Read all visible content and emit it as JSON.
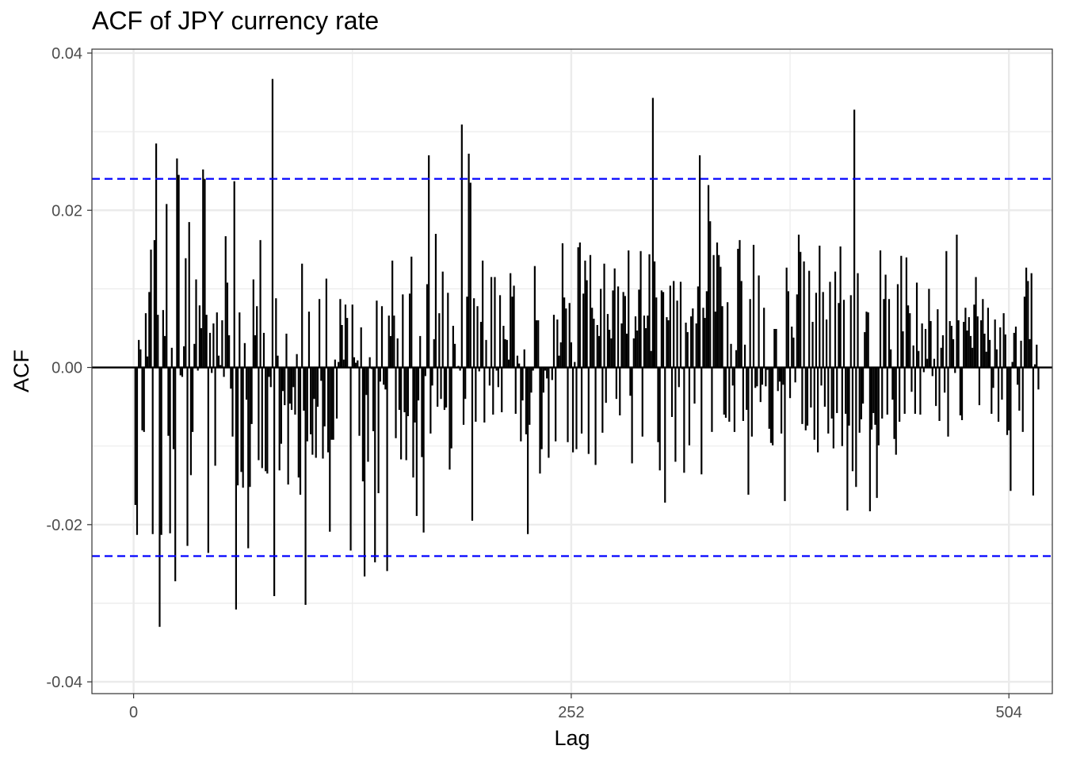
{
  "chart_data": {
    "type": "bar",
    "title": "ACF of JPY currency rate",
    "xlabel": "Lag",
    "ylabel": "ACF",
    "xlim": [
      -24,
      529
    ],
    "ylim": [
      -0.0415,
      0.0405
    ],
    "x_ticks": [
      0,
      252,
      504
    ],
    "x_minor_ticks": [
      126,
      378
    ],
    "y_ticks": [
      -0.04,
      -0.02,
      0.0,
      0.02,
      0.04
    ],
    "y_tick_labels": [
      "-0.04",
      "-0.02",
      "0.00",
      "0.02",
      "0.04"
    ],
    "y_minor_ticks": [
      -0.03,
      -0.01,
      0.01,
      0.03
    ],
    "grid": true,
    "confidence_bounds": [
      0.024,
      -0.024
    ],
    "colors": {
      "bars": "#000000",
      "confidence_lines": "#0000FF",
      "grid": "#EBEBEB",
      "zero_line": "#000000"
    },
    "lags_start": 1,
    "values": [
      -0.0175,
      -0.0213,
      0.0035,
      0.0023,
      -0.008,
      -0.0082,
      0.0069,
      0.0014,
      0.0096,
      0.015,
      -0.0212,
      0.0162,
      0.0285,
      0.0067,
      -0.033,
      -0.0213,
      0.0073,
      0.004,
      0.0208,
      -0.0087,
      -0.0211,
      0.0025,
      -0.0104,
      -0.0272,
      0.0266,
      0.0245,
      -0.001,
      -0.0012,
      0.0027,
      0.0139,
      -0.0227,
      0.0185,
      -0.0137,
      -0.0082,
      0.003,
      0.0112,
      -0.0004,
      0.0079,
      0.005,
      0.0252,
      0.024,
      0.0067,
      -0.0236,
      0.0044,
      -0.0007,
      0.0056,
      -0.0125,
      0.007,
      0.0015,
      0.0003,
      0.006,
      -0.0012,
      0.0167,
      0.0108,
      0.0041,
      -0.0027,
      -0.0088,
      0.0237,
      -0.0308,
      -0.015,
      0.007,
      -0.0133,
      -0.0153,
      0.0031,
      -0.0041,
      -0.023,
      -0.0152,
      -0.0072,
      0.0112,
      0.0041,
      0.0078,
      -0.0118,
      0.0162,
      -0.0128,
      0.0044,
      -0.0132,
      -0.0135,
      -0.0012,
      -0.0025,
      0.0367,
      -0.0291,
      0.0088,
      0.0015,
      -0.0131,
      -0.0097,
      -0.003,
      -0.0048,
      0.0043,
      -0.0149,
      -0.0046,
      -0.0054,
      -0.0025,
      -0.006,
      0.0017,
      -0.014,
      -0.0162,
      0.0132,
      -0.0055,
      -0.0302,
      -0.0094,
      0.0071,
      -0.0085,
      -0.0111,
      -0.004,
      -0.0115,
      -0.005,
      0.0087,
      -0.0017,
      -0.0116,
      -0.0075,
      0.0113,
      -0.0108,
      -0.0209,
      -0.0092,
      -0.0092,
      0.001,
      -0.0065,
      0.0007,
      0.0087,
      0.0054,
      0.001,
      0.008,
      0.0063,
      -0.0001,
      -0.0233,
      0.008,
      0.0013,
      0.0006,
      0.0009,
      -0.0087,
      0.0051,
      -0.0145,
      -0.0266,
      -0.0035,
      -0.012,
      0.0013,
      -0.0002,
      -0.0081,
      -0.0248,
      0.0085,
      -0.016,
      -0.0018,
      0.0078,
      -0.0022,
      -0.0028,
      -0.0259,
      0.0066,
      0.004,
      0.0136,
      0.0066,
      -0.009,
      0.0037,
      -0.0054,
      -0.0117,
      0.0093,
      -0.0057,
      -0.0118,
      -0.0062,
      0.0094,
      0.0141,
      -0.014,
      -0.007,
      -0.0189,
      -0.0042,
      0.004,
      -0.0114,
      -0.021,
      -0.0011,
      0.0106,
      0.027,
      -0.0084,
      -0.0023,
      0.0036,
      0.017,
      -0.005,
      0.0069,
      -0.004,
      0.0122,
      -0.0054,
      -0.0051,
      0.0095,
      -0.013,
      -0.0103,
      0.0053,
      0.003,
      0.0001,
      0.0002,
      -0.0004,
      0.0309,
      -0.0073,
      -0.004,
      0.009,
      0.0272,
      0.0235,
      -0.0195,
      0.0088,
      -0.0069,
      0.0078,
      -0.0005,
      0.0058,
      0.0136,
      -0.007,
      0.0035,
      0.0001,
      -0.0023,
      0.0115,
      -0.006,
      0.0115,
      -0.0004,
      -0.0025,
      0.0092,
      -0.0057,
      0.0053,
      0.0036,
      0.0035,
      0.001,
      0.012,
      0.009,
      0.0104,
      -0.0059,
      0.0015,
      0.0005,
      -0.0094,
      -0.0042,
      0.0023,
      -0.0085,
      -0.0212,
      -0.0073,
      -0.0032,
      -0.0004,
      0.0129,
      0.006,
      0.006,
      -0.0135,
      -0.0104,
      -0.0032,
      -0.0004,
      -0.0014,
      -0.0115,
      -0.0001,
      -0.0016,
      0.0067,
      -0.0094,
      0.0061,
      0.0015,
      0.0032,
      0.0158,
      0.0089,
      0.0075,
      -0.0095,
      0.0082,
      0.0032,
      -0.0108,
      0.0007,
      -0.0104,
      0.0153,
      0.0159,
      -0.0084,
      0.0094,
      0.0136,
      0.0111,
      -0.011,
      0.0143,
      0.0076,
      0.0062,
      -0.0124,
      0.0054,
      0.004,
      0.01,
      -0.0083,
      0.0132,
      -0.0045,
      0.0068,
      0.0048,
      0.0037,
      0.0098,
      0.0126,
      -0.004,
      0.0103,
      -0.0061,
      0.0056,
      0.0096,
      0.0091,
      0.0043,
      0.0149,
      -0.0036,
      -0.0122,
      0.0037,
      0.0065,
      0.0047,
      0.0099,
      0.0148,
      -0.0088,
      0.0066,
      0.005,
      0.0066,
      0.0144,
      0.0021,
      0.0343,
      0.0135,
      0.0089,
      -0.0095,
      -0.0131,
      0.0098,
      0.0096,
      -0.0172,
      0.0064,
      0.006,
      0.0104,
      -0.0063,
      0.011,
      -0.012,
      0.0085,
      -0.0025,
      0.0109,
      -0.0002,
      -0.0134,
      0.0057,
      0.0045,
      -0.0099,
      0.0065,
      0.0075,
      -0.0046,
      0.0056,
      0.0103,
      0.027,
      -0.0136,
      0.0076,
      0.0063,
      0.0097,
      0.0232,
      0.0186,
      -0.0082,
      0.0143,
      0.0071,
      0.0159,
      0.0143,
      0.0128,
      0.0078,
      -0.006,
      -0.0064,
      0.0083,
      -0.0069,
      0.003,
      -0.0023,
      -0.0082,
      0.0022,
      0.0151,
      0.0162,
      0.011,
      -0.0068,
      0.0029,
      -0.0054,
      -0.0162,
      0.0087,
      -0.0088,
      0.0156,
      -0.0026,
      -0.0024,
      0.0117,
      -0.0044,
      -0.0022,
      0.0076,
      -0.0024,
      -0.0003,
      -0.0078,
      -0.0096,
      -0.0099,
      0.0049,
      0.0049,
      -0.003,
      -0.0018,
      -0.0084,
      -0.0022,
      -0.017,
      0.0127,
      0.0097,
      -0.0039,
      0.0052,
      0.0038,
      -0.0019,
      0.0093,
      0.0169,
      0.0147,
      -0.0072,
      0.0135,
      -0.008,
      -0.0074,
      0.0123,
      -0.0051,
      0.0058,
      -0.0092,
      0.0095,
      -0.0108,
      0.0155,
      -0.0023,
      0.0096,
      -0.005,
      0.0061,
      -0.0084,
      0.0109,
      -0.0065,
      -0.0103,
      0.0122,
      -0.0058,
      0.0082,
      0.0154,
      -0.01,
      0.0086,
      -0.0059,
      -0.0182,
      -0.0074,
      0.0092,
      -0.0132,
      0.0328,
      -0.0152,
      0.012,
      -0.0083,
      -0.0066,
      -0.0046,
      0.0045,
      0.0071,
      0.007,
      -0.0183,
      -0.0079,
      -0.0058,
      -0.0073,
      -0.0166,
      -0.0099,
      0.0149,
      -0.0065,
      0.0087,
      0.0118,
      -0.006,
      0.0087,
      0.0023,
      -0.0041,
      -0.0091,
      -0.0111,
      0.0106,
      -0.0069,
      0.0142,
      0.0046,
      -0.0059,
      0.014,
      0.0079,
      0.0069,
      -0.0031,
      0.0028,
      -0.0059,
      0.0108,
      0.0021,
      -0.006,
      0.0056,
      -0.0006,
      0.0049,
      0.0011,
      0.01,
      0.0059,
      -0.0011,
      0.0011,
      -0.0049,
      0.0074,
      -0.0068,
      0.0025,
      0.0041,
      -0.0032,
      0.0148,
      -0.0088,
      0.0059,
      0.0053,
      0.0036,
      -0.0007,
      0.0169,
      0.006,
      -0.0061,
      -0.0067,
      0.0058,
      0.0076,
      0.0047,
      0.0064,
      0.004,
      0.0025,
      0.008,
      0.0115,
      0.0065,
      -0.0048,
      0.006,
      0.0087,
      0.0043,
      0.002,
      0.0076,
      0.0035,
      -0.0059,
      -0.0026,
      0.0061,
      0.0023,
      -0.0069,
      0.0051,
      -0.0041,
      0.0069,
      0.0042,
      -0.0086,
      -0.008,
      -0.0157,
      0.0007,
      0.0044,
      0.0052,
      -0.0022,
      -0.0055,
      0.0034,
      -0.0082,
      0.009,
      0.0127,
      0.011,
      0.0036,
      0.012,
      -0.0163,
      0.0004,
      0.0029,
      -0.0028
    ]
  }
}
